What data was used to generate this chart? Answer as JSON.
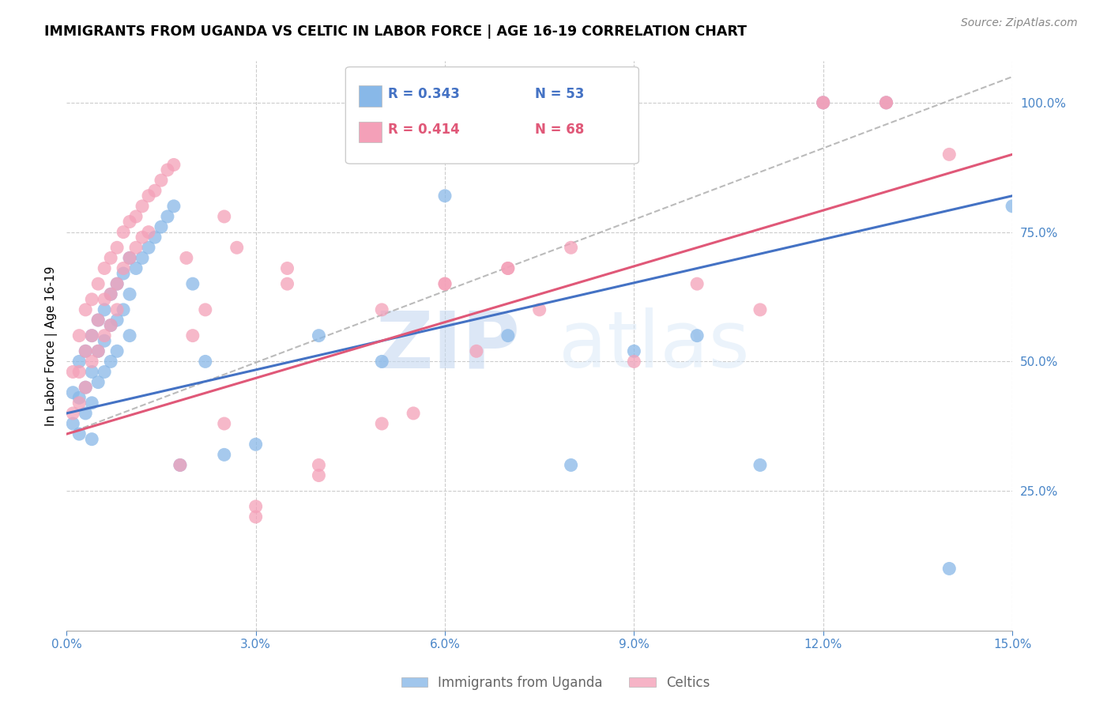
{
  "title": "IMMIGRANTS FROM UGANDA VS CELTIC IN LABOR FORCE | AGE 16-19 CORRELATION CHART",
  "source": "Source: ZipAtlas.com",
  "ylabel": "In Labor Force | Age 16-19",
  "xlim": [
    0.0,
    0.15
  ],
  "ylim": [
    -0.02,
    1.08
  ],
  "xticks": [
    0.0,
    0.03,
    0.06,
    0.09,
    0.12,
    0.15
  ],
  "xtick_labels": [
    "0.0%",
    "3.0%",
    "6.0%",
    "9.0%",
    "12.0%",
    "15.0%"
  ],
  "yticks_right": [
    0.25,
    0.5,
    0.75,
    1.0
  ],
  "ytick_labels_right": [
    "25.0%",
    "50.0%",
    "75.0%",
    "100.0%"
  ],
  "blue_color": "#88b8e8",
  "pink_color": "#f4a0b8",
  "blue_line_color": "#4472C4",
  "pink_line_color": "#e05878",
  "legend_R_blue": "R = 0.343",
  "legend_N_blue": "N = 53",
  "legend_R_pink": "R = 0.414",
  "legend_N_pink": "N = 68",
  "legend_label_blue": "Immigrants from Uganda",
  "legend_label_pink": "Celtics",
  "axis_color": "#4a86c8",
  "watermark_zip": "ZIP",
  "watermark_atlas": "atlas",
  "blue_x": [
    0.001,
    0.001,
    0.002,
    0.002,
    0.002,
    0.003,
    0.003,
    0.003,
    0.004,
    0.004,
    0.004,
    0.004,
    0.005,
    0.005,
    0.005,
    0.006,
    0.006,
    0.006,
    0.007,
    0.007,
    0.007,
    0.008,
    0.008,
    0.008,
    0.009,
    0.009,
    0.01,
    0.01,
    0.01,
    0.011,
    0.012,
    0.013,
    0.014,
    0.015,
    0.016,
    0.017,
    0.018,
    0.02,
    0.022,
    0.025,
    0.03,
    0.04,
    0.05,
    0.06,
    0.07,
    0.08,
    0.09,
    0.1,
    0.11,
    0.12,
    0.13,
    0.14,
    0.15
  ],
  "blue_y": [
    0.44,
    0.38,
    0.5,
    0.43,
    0.36,
    0.52,
    0.45,
    0.4,
    0.55,
    0.48,
    0.42,
    0.35,
    0.58,
    0.52,
    0.46,
    0.6,
    0.54,
    0.48,
    0.63,
    0.57,
    0.5,
    0.65,
    0.58,
    0.52,
    0.67,
    0.6,
    0.7,
    0.63,
    0.55,
    0.68,
    0.7,
    0.72,
    0.74,
    0.76,
    0.78,
    0.8,
    0.3,
    0.65,
    0.5,
    0.32,
    0.34,
    0.55,
    0.5,
    0.82,
    0.55,
    0.3,
    0.52,
    0.55,
    0.3,
    1.0,
    1.0,
    0.1,
    0.8
  ],
  "pink_x": [
    0.001,
    0.001,
    0.002,
    0.002,
    0.002,
    0.003,
    0.003,
    0.003,
    0.004,
    0.004,
    0.004,
    0.005,
    0.005,
    0.005,
    0.006,
    0.006,
    0.006,
    0.007,
    0.007,
    0.007,
    0.008,
    0.008,
    0.008,
    0.009,
    0.009,
    0.01,
    0.01,
    0.011,
    0.011,
    0.012,
    0.012,
    0.013,
    0.013,
    0.014,
    0.015,
    0.016,
    0.017,
    0.018,
    0.019,
    0.02,
    0.022,
    0.025,
    0.027,
    0.03,
    0.035,
    0.04,
    0.05,
    0.06,
    0.07,
    0.08,
    0.09,
    0.1,
    0.11,
    0.12,
    0.13,
    0.14,
    0.12,
    0.13,
    0.05,
    0.06,
    0.07,
    0.025,
    0.03,
    0.035,
    0.04,
    0.055,
    0.065,
    0.075
  ],
  "pink_y": [
    0.48,
    0.4,
    0.55,
    0.48,
    0.42,
    0.6,
    0.52,
    0.45,
    0.62,
    0.55,
    0.5,
    0.65,
    0.58,
    0.52,
    0.68,
    0.62,
    0.55,
    0.7,
    0.63,
    0.57,
    0.72,
    0.65,
    0.6,
    0.75,
    0.68,
    0.77,
    0.7,
    0.78,
    0.72,
    0.8,
    0.74,
    0.82,
    0.75,
    0.83,
    0.85,
    0.87,
    0.88,
    0.3,
    0.7,
    0.55,
    0.6,
    0.38,
    0.72,
    0.2,
    0.65,
    0.3,
    0.38,
    0.65,
    0.68,
    0.72,
    0.5,
    0.65,
    0.6,
    1.0,
    1.0,
    0.9,
    1.0,
    1.0,
    0.6,
    0.65,
    0.68,
    0.78,
    0.22,
    0.68,
    0.28,
    0.4,
    0.52,
    0.6
  ]
}
